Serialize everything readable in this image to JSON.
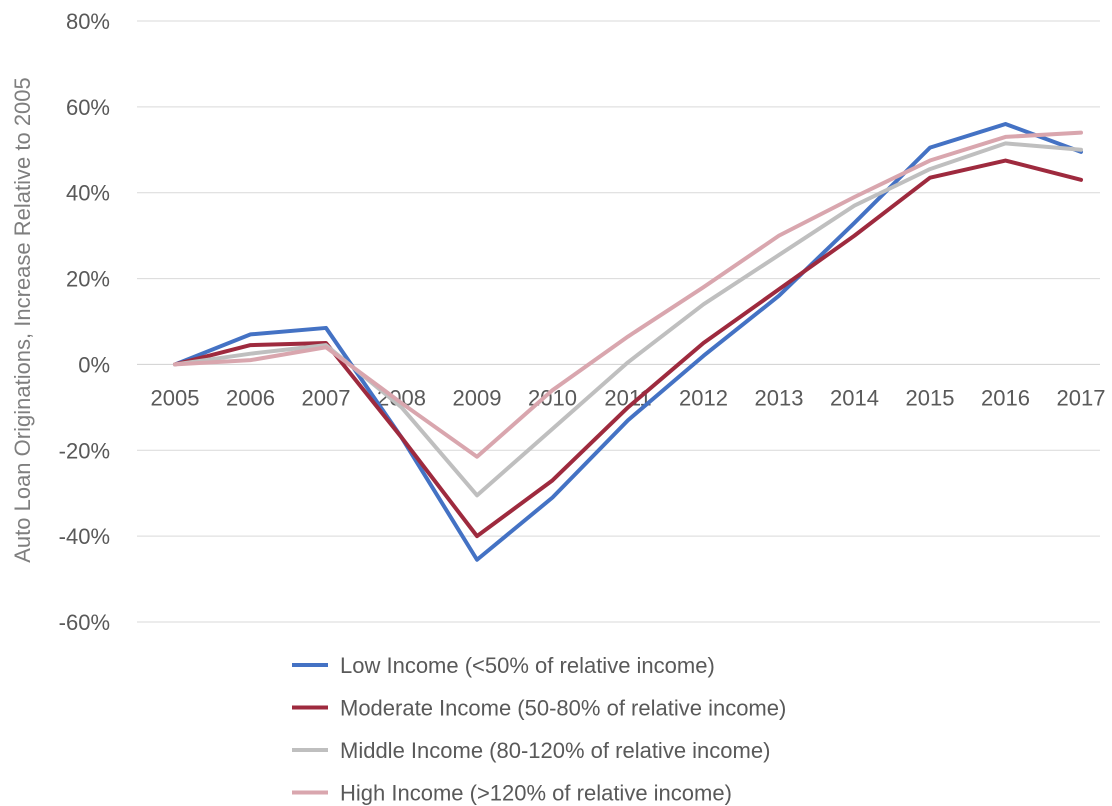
{
  "chart_data": {
    "type": "line",
    "title": "",
    "xlabel": "",
    "ylabel": "Auto Loan Originations, Increase Relative to 2005",
    "ylim": [
      -60,
      80
    ],
    "yticks": [
      "80%",
      "60%",
      "40%",
      "20%",
      "0%",
      "-20%",
      "-40%",
      "-60%"
    ],
    "ytick_values": [
      80,
      60,
      40,
      20,
      0,
      -20,
      -40,
      -60
    ],
    "x": [
      "2005",
      "2006",
      "2007",
      "2008",
      "2009",
      "2010",
      "2011",
      "2012",
      "2013",
      "2014",
      "2015",
      "2016",
      "2017"
    ],
    "grid": "horizontal",
    "legend_position": "bottom",
    "series": [
      {
        "name": "Low Income (<50% of relative income)",
        "color": "#4472c4",
        "values": [
          0,
          7,
          8.5,
          -17,
          -45.5,
          -31,
          -13,
          2,
          16,
          33,
          50.5,
          56,
          49.5
        ]
      },
      {
        "name": "Moderate Income (50-80% of relative income)",
        "color": "#9e2a3e",
        "values": [
          0,
          4.5,
          5,
          -17,
          -40,
          -27,
          -10,
          5,
          17.5,
          30,
          43.5,
          47.5,
          43
        ]
      },
      {
        "name": "Middle Income (80-120% of relative income)",
        "color": "#bfbfbf",
        "values": [
          0,
          2.5,
          4.5,
          -10,
          -30.5,
          -15,
          0.5,
          14,
          25.5,
          37,
          45.5,
          51.5,
          50
        ]
      },
      {
        "name": "High Income (>120% of relative income)",
        "color": "#d9a6ae",
        "values": [
          0,
          1,
          4,
          -9,
          -21.5,
          -6,
          6.5,
          18,
          30,
          39,
          47.5,
          53,
          54
        ]
      }
    ]
  }
}
